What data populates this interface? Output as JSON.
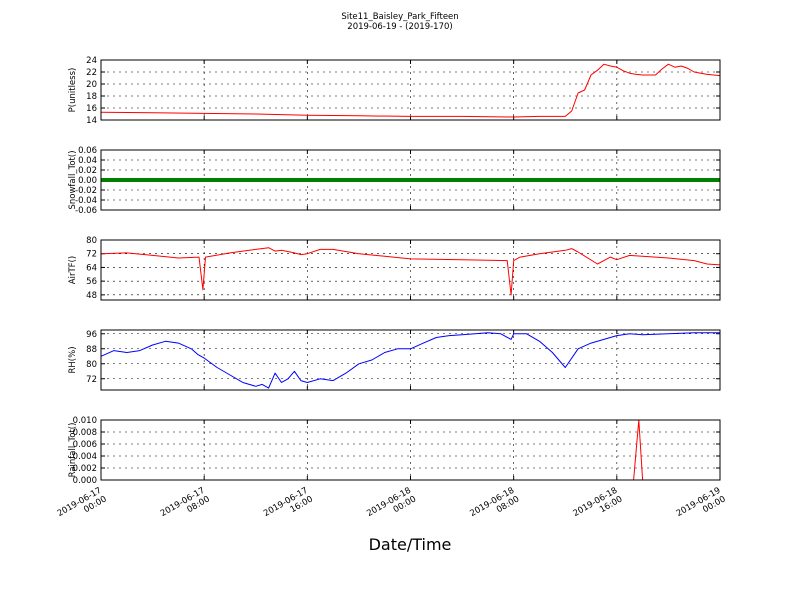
{
  "figure": {
    "title_line1": "Site11_Baisley_Park_Fifteen",
    "title_line2": "2019-06-19 - (2019-170)",
    "xlabel": "Date/Time"
  },
  "chart_data": [
    {
      "type": "line",
      "ylabel": "P(unitless)",
      "ylim": [
        14,
        24
      ],
      "yticks": [
        14,
        16,
        18,
        20,
        22,
        24
      ],
      "xlim_hours": [
        0,
        48
      ],
      "grid": true,
      "series": [
        {
          "color": "#ff0000",
          "x": [
            0,
            4,
            8,
            12,
            14,
            16,
            20,
            24,
            28,
            32,
            34,
            36,
            36.5,
            37,
            37.5,
            38,
            38.5,
            39,
            39.5,
            40,
            40.5,
            41,
            41.5,
            42,
            43,
            43.5,
            44,
            44.5,
            45,
            45.5,
            46,
            47,
            48
          ],
          "y": [
            15.3,
            15.2,
            15.1,
            15.0,
            14.9,
            14.8,
            14.7,
            14.6,
            14.6,
            14.5,
            14.6,
            14.6,
            15.5,
            18.5,
            19.0,
            21.5,
            22.3,
            23.3,
            23.0,
            22.8,
            22.2,
            21.8,
            21.6,
            21.5,
            21.5,
            22.5,
            23.3,
            22.8,
            23.0,
            22.6,
            22.0,
            21.6,
            21.4
          ]
        }
      ]
    },
    {
      "type": "line",
      "ylabel": "Snowfall_Tot()",
      "ylim": [
        -0.06,
        0.06
      ],
      "yticks": [
        -0.06,
        -0.04,
        -0.02,
        0.0,
        0.02,
        0.04,
        0.06
      ],
      "xlim_hours": [
        0,
        48
      ],
      "grid": true,
      "series": [
        {
          "color": "#008000",
          "x": [
            0,
            48
          ],
          "y": [
            0,
            0
          ],
          "thick": true
        }
      ]
    },
    {
      "type": "line",
      "ylabel": "AirTF()",
      "ylim": [
        45,
        80
      ],
      "yticks": [
        48,
        56,
        64,
        72,
        80
      ],
      "xlim_hours": [
        0,
        48
      ],
      "grid": true,
      "series": [
        {
          "color": "#ff0000",
          "x": [
            0,
            2,
            4,
            6,
            7.6,
            7.9,
            8.1,
            8.5,
            10,
            12,
            13,
            13.5,
            14,
            15,
            15.5,
            16,
            17,
            18,
            20,
            22,
            24,
            28,
            31.5,
            31.8,
            32,
            32.5,
            34,
            36,
            36.5,
            37,
            38.5,
            39,
            39.5,
            40,
            41,
            44,
            46,
            47,
            48
          ],
          "y": [
            72,
            72.5,
            71,
            69.5,
            70,
            51,
            70,
            70.5,
            72.5,
            74.5,
            75.5,
            73.5,
            74,
            72.5,
            71.5,
            72,
            74.5,
            74.5,
            72,
            70.5,
            69,
            68.5,
            68,
            48,
            68,
            70,
            72,
            74,
            75,
            73,
            66,
            68,
            70,
            68.5,
            71,
            69.5,
            68,
            66,
            65.5
          ]
        }
      ]
    },
    {
      "type": "line",
      "ylabel": "RH(%)",
      "ylim": [
        66,
        98
      ],
      "yticks": [
        72,
        80,
        88,
        96
      ],
      "xlim_hours": [
        0,
        48
      ],
      "grid": true,
      "series": [
        {
          "color": "#0000ff",
          "x": [
            0,
            1,
            2,
            3,
            4,
            5,
            6,
            7,
            7.5,
            8,
            9,
            10,
            11,
            12,
            12.5,
            13,
            13.5,
            14,
            14.5,
            15,
            15.5,
            16,
            17,
            18,
            19,
            20,
            21,
            22,
            23,
            24,
            25,
            26,
            27,
            28,
            29,
            30,
            31,
            31.8,
            32,
            33,
            34,
            35,
            35.5,
            36,
            37,
            38,
            39,
            40,
            41,
            42,
            44,
            46,
            48
          ],
          "y": [
            84,
            87,
            86,
            87,
            90,
            92,
            91,
            88,
            85,
            83,
            78,
            74,
            70,
            68,
            69,
            67,
            75,
            70,
            72,
            76,
            71,
            70,
            72,
            71,
            75,
            80,
            82,
            86,
            88,
            88,
            91,
            94,
            95,
            95.5,
            96,
            96.5,
            96,
            93,
            96,
            96,
            92,
            86,
            82,
            78,
            88,
            91,
            93,
            95,
            96,
            95.5,
            96,
            96.5,
            96.5
          ]
        }
      ]
    },
    {
      "type": "line",
      "ylabel": "Rainfall_Tot()",
      "ylim": [
        0,
        0.01
      ],
      "yticks": [
        0.0,
        0.002,
        0.004,
        0.006,
        0.008,
        0.01
      ],
      "ytick_labels": [
        "0.000",
        "0.002",
        "0.004",
        "0.006",
        "0.008",
        "0.010"
      ],
      "xlim_hours": [
        0,
        48
      ],
      "grid": true,
      "series": [
        {
          "color": "#ff0000",
          "x": [
            0,
            41.3,
            41.7,
            42.0,
            48
          ],
          "y": [
            0,
            0,
            0.01,
            0,
            0
          ]
        }
      ]
    }
  ],
  "x_ticks": [
    {
      "hour": 0,
      "line1": "2019-06-17",
      "line2": "00:00"
    },
    {
      "hour": 8,
      "line1": "2019-06-17",
      "line2": "08:00"
    },
    {
      "hour": 16,
      "line1": "2019-06-17",
      "line2": "16:00"
    },
    {
      "hour": 24,
      "line1": "2019-06-18",
      "line2": "00:00"
    },
    {
      "hour": 32,
      "line1": "2019-06-18",
      "line2": "08:00"
    },
    {
      "hour": 40,
      "line1": "2019-06-18",
      "line2": "16:00"
    },
    {
      "hour": 48,
      "line1": "2019-06-19",
      "line2": "00:00"
    }
  ]
}
